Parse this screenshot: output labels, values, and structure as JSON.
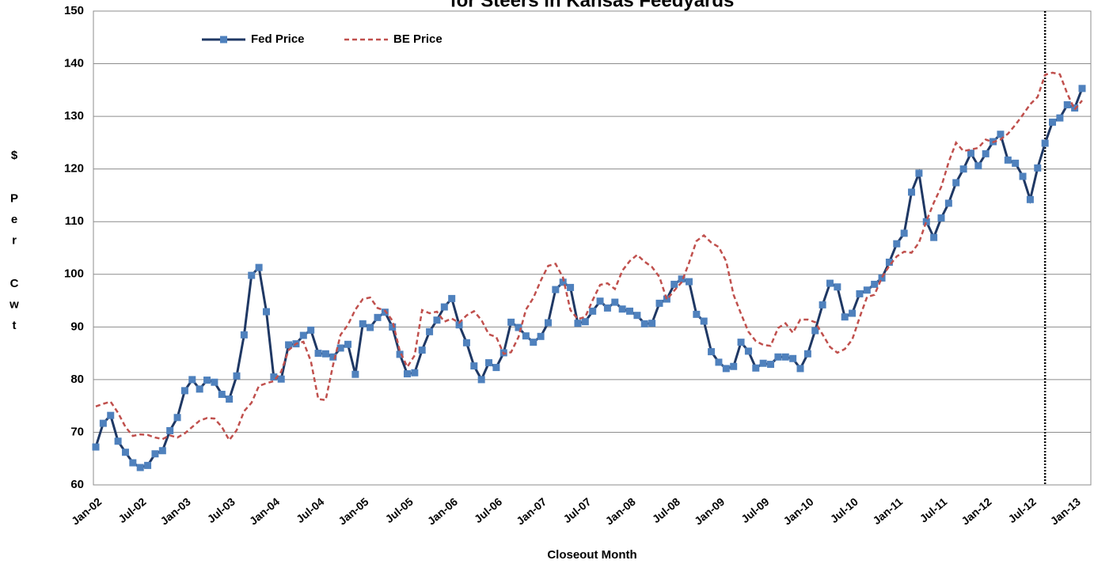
{
  "chart_data": {
    "type": "line",
    "title": "for Steers in Kansas Feedyards",
    "x_label": "Closeout Month",
    "y_label": "$ Per Cwt",
    "categories": [
      "Jan-02",
      null,
      null,
      null,
      null,
      null,
      "Jul-02",
      null,
      null,
      null,
      null,
      null,
      "Jan-03",
      null,
      null,
      null,
      null,
      null,
      "Jul-03",
      null,
      null,
      null,
      null,
      null,
      "Jan-04",
      null,
      null,
      null,
      null,
      null,
      "Jul-04",
      null,
      null,
      null,
      null,
      null,
      "Jan-05",
      null,
      null,
      null,
      null,
      null,
      "Jul-05",
      null,
      null,
      null,
      null,
      null,
      "Jan-06",
      null,
      null,
      null,
      null,
      null,
      "Jul-06",
      null,
      null,
      null,
      null,
      null,
      "Jan-07",
      null,
      null,
      null,
      null,
      null,
      "Jul-07",
      null,
      null,
      null,
      null,
      null,
      "Jan-08",
      null,
      null,
      null,
      null,
      null,
      "Jul-08",
      null,
      null,
      null,
      null,
      null,
      "Jan-09",
      null,
      null,
      null,
      null,
      null,
      "Jul-09",
      null,
      null,
      null,
      null,
      null,
      "Jan-10",
      null,
      null,
      null,
      null,
      null,
      "Jul-10",
      null,
      null,
      null,
      null,
      null,
      "Jan-11",
      null,
      null,
      null,
      null,
      null,
      "Jul-11",
      null,
      null,
      null,
      null,
      null,
      "Jan-12",
      null,
      null,
      null,
      null,
      null,
      "Jul-12",
      null,
      null,
      null,
      null,
      null,
      "Jan-13",
      null
    ],
    "series": [
      {
        "name": "Fed Price",
        "color": "#1f3864",
        "marker_color": "#4f81bd",
        "dashed": false,
        "values": [
          67.2,
          71.7,
          73.2,
          68.3,
          66.2,
          64.2,
          63.3,
          63.7,
          65.9,
          66.5,
          70.3,
          72.8,
          77.9,
          80.0,
          78.2,
          79.9,
          79.5,
          77.2,
          76.3,
          80.7,
          88.5,
          99.8,
          101.3,
          92.9,
          80.5,
          80.1,
          86.6,
          86.8,
          88.4,
          89.4,
          85.0,
          84.9,
          84.3,
          86.0,
          86.7,
          81.0,
          90.6,
          89.9,
          91.8,
          92.8,
          90.0,
          84.8,
          81.1,
          81.3,
          85.6,
          89.1,
          91.3,
          93.8,
          95.4,
          90.4,
          87.0,
          82.6,
          80.0,
          83.2,
          82.3,
          85.1,
          90.9,
          89.9,
          88.3,
          87.1,
          88.2,
          90.8,
          97.1,
          98.5,
          97.5,
          90.7,
          91.0,
          93.0,
          94.9,
          93.6,
          94.7,
          93.4,
          93.0,
          92.2,
          90.6,
          90.7,
          94.5,
          95.3,
          98.1,
          99.1,
          98.6,
          92.4,
          91.1,
          85.3,
          83.3,
          82.1,
          82.5,
          87.1,
          85.4,
          82.2,
          83.1,
          82.9,
          84.3,
          84.3,
          84.0,
          82.1,
          84.9,
          89.3,
          94.2,
          98.3,
          97.6,
          91.9,
          92.6,
          96.3,
          97.0,
          98.1,
          99.3,
          102.3,
          105.8,
          107.8,
          115.6,
          119.2,
          110.0,
          107.0,
          110.7,
          113.5,
          117.4,
          120.0,
          123.0,
          120.6,
          122.9,
          125.2,
          126.6,
          121.7,
          121.1,
          118.6,
          114.2,
          120.2,
          124.9,
          128.9,
          129.7,
          132.2,
          131.6,
          135.3
        ]
      },
      {
        "name": "BE Price",
        "color": "#c0504d",
        "dashed": true,
        "values": [
          74.9,
          75.4,
          75.8,
          73.7,
          71.0,
          69.3,
          69.6,
          69.5,
          69.0,
          68.7,
          69.4,
          69.0,
          69.8,
          71.0,
          72.2,
          72.7,
          72.6,
          71.0,
          68.5,
          70.4,
          74.0,
          75.6,
          78.8,
          79.3,
          79.7,
          81.5,
          85.6,
          86.8,
          87.2,
          83.5,
          76.3,
          76.1,
          82.8,
          88.5,
          90.4,
          93.3,
          95.3,
          95.6,
          93.6,
          93.1,
          91.2,
          85.4,
          82.4,
          84.6,
          93.2,
          92.6,
          92.9,
          91.0,
          91.6,
          90.8,
          92.2,
          93.0,
          91.3,
          88.6,
          88.1,
          84.9,
          85.2,
          88.1,
          93.3,
          95.5,
          98.8,
          101.6,
          102.0,
          99.4,
          93.2,
          91.5,
          91.9,
          95.1,
          98.0,
          98.3,
          97.2,
          100.7,
          102.5,
          103.7,
          102.4,
          101.4,
          99.5,
          95.2,
          96.9,
          98.5,
          102.2,
          106.3,
          107.4,
          106.0,
          105.2,
          102.5,
          96.1,
          92.5,
          89.1,
          87.3,
          86.6,
          86.4,
          89.8,
          90.7,
          88.9,
          91.4,
          91.4,
          90.9,
          88.6,
          86.2,
          85.1,
          85.8,
          87.6,
          91.8,
          95.7,
          96.1,
          99.4,
          101.6,
          103.4,
          104.3,
          104.1,
          106.0,
          110.1,
          113.6,
          116.6,
          121.3,
          125.0,
          123.4,
          123.7,
          124.0,
          125.6,
          125.1,
          125.6,
          126.7,
          128.4,
          130.3,
          132.3,
          133.7,
          137.9,
          138.3,
          138.0,
          134.3,
          131.3,
          133.0
        ]
      }
    ],
    "ylim": [
      60,
      150
    ],
    "yticks": [
      60,
      70,
      80,
      90,
      100,
      110,
      120,
      130,
      140,
      150
    ],
    "grid": true,
    "legend": "top-left"
  }
}
